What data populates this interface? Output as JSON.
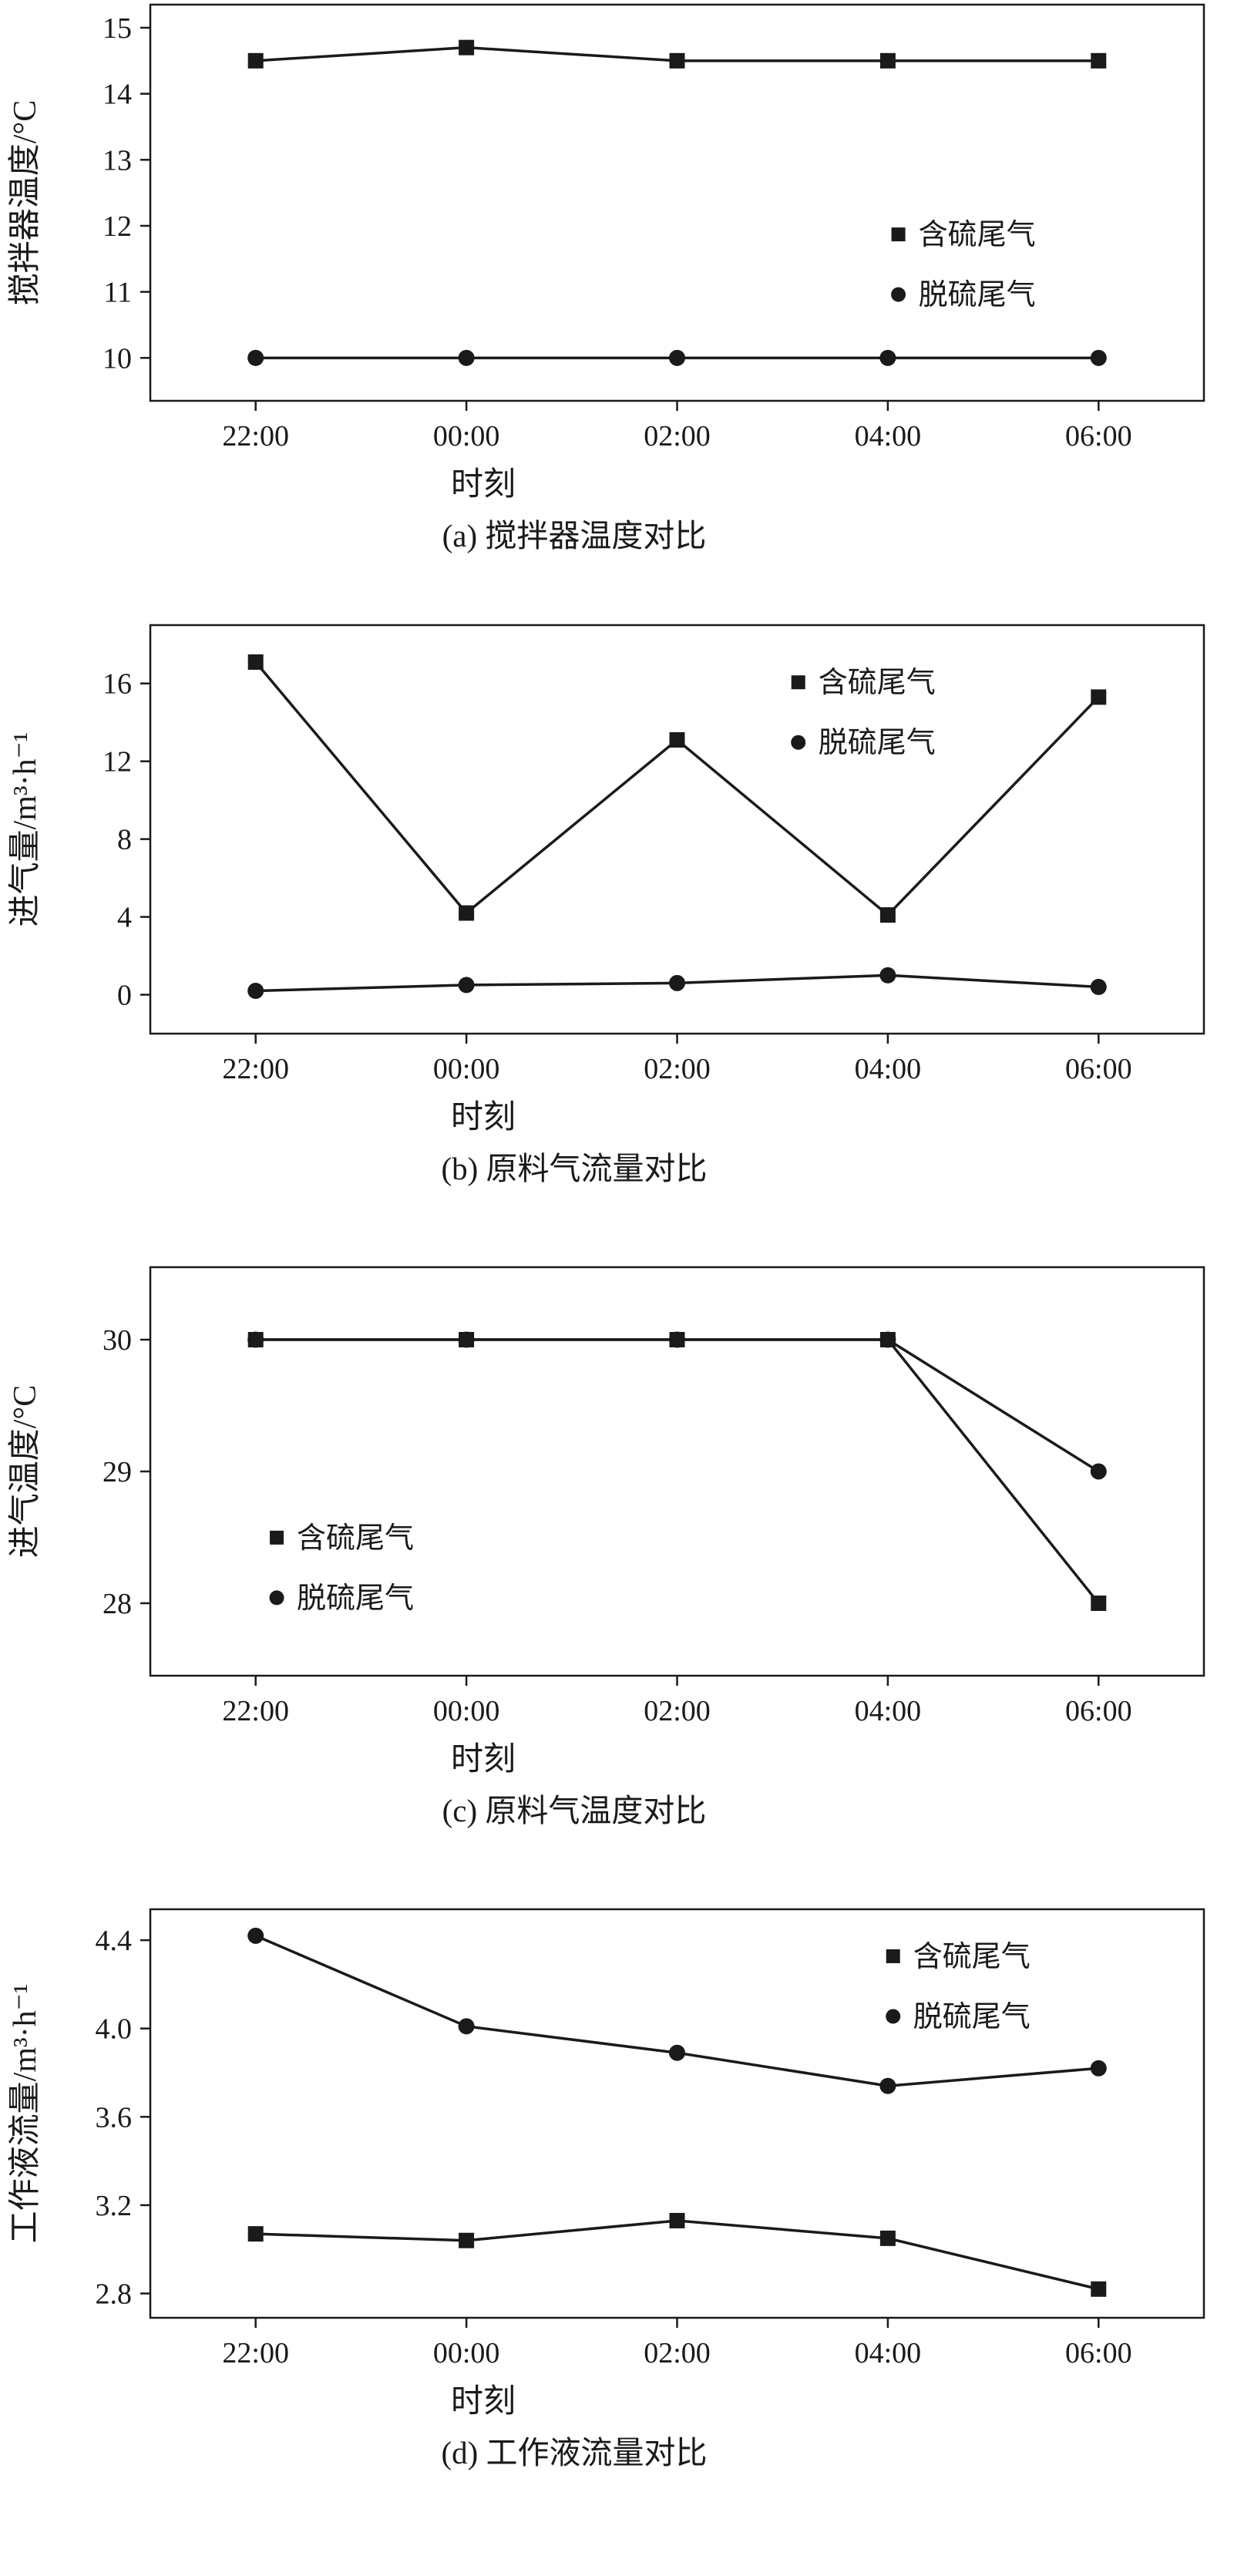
{
  "figure": {
    "background": "#ffffff",
    "line_color": "#1a1a1a"
  },
  "chart_data": [
    {
      "type": "line",
      "caption": "(a) 搅拌器温度对比",
      "xlabel": "时刻",
      "ylabel": "搅拌器温度/°C",
      "x_ticklabels": [
        "22:00",
        "00:00",
        "02:00",
        "04:00",
        "06:00"
      ],
      "ylim": [
        9.35,
        15.35
      ],
      "yticks": [
        10,
        11,
        12,
        13,
        14,
        15
      ],
      "ytick_labels": [
        "10",
        "11",
        "12",
        "13",
        "14",
        "15"
      ],
      "grid": false,
      "legend": {
        "fx": 0.71,
        "fy": 0.58
      },
      "series": [
        {
          "name": "含硫尾气",
          "marker": "square",
          "values": [
            14.5,
            14.7,
            14.5,
            14.5,
            14.5
          ]
        },
        {
          "name": "脱硫尾气",
          "marker": "circle",
          "values": [
            10.0,
            10.0,
            10.0,
            10.0,
            10.0
          ]
        }
      ]
    },
    {
      "type": "line",
      "caption": "(b) 原料气流量对比",
      "xlabel": "时刻",
      "ylabel": "进气量/m³·h⁻¹",
      "x_ticklabels": [
        "22:00",
        "00:00",
        "02:00",
        "04:00",
        "06:00"
      ],
      "ylim": [
        -2,
        19
      ],
      "yticks": [
        0,
        4,
        8,
        12,
        16
      ],
      "ytick_labels": [
        "0",
        "4",
        "8",
        "12",
        "16"
      ],
      "grid": false,
      "legend": {
        "fx": 0.615,
        "fy": 0.14
      },
      "series": [
        {
          "name": "含硫尾气",
          "marker": "square",
          "values": [
            17.1,
            4.2,
            13.1,
            4.1,
            15.3
          ]
        },
        {
          "name": "脱硫尾气",
          "marker": "circle",
          "values": [
            0.2,
            0.5,
            0.6,
            1.0,
            0.4
          ]
        }
      ]
    },
    {
      "type": "line",
      "caption": "(c) 原料气温度对比",
      "xlabel": "时刻",
      "ylabel": "进气温度/°C",
      "x_ticklabels": [
        "22:00",
        "00:00",
        "02:00",
        "04:00",
        "06:00"
      ],
      "ylim": [
        27.45,
        30.55
      ],
      "yticks": [
        28,
        29,
        30
      ],
      "ytick_labels": [
        "28",
        "29",
        "30"
      ],
      "grid": false,
      "legend": {
        "fx": 0.12,
        "fy": 0.662
      },
      "series": [
        {
          "name": "含硫尾气",
          "marker": "square",
          "values": [
            30,
            30,
            30,
            30,
            28
          ]
        },
        {
          "name": "脱硫尾气",
          "marker": "circle",
          "values": [
            30,
            30,
            30,
            30,
            29
          ]
        }
      ]
    },
    {
      "type": "line",
      "caption": "(d) 工作液流量对比",
      "xlabel": "时刻",
      "ylabel": "工作液流量/m³·h⁻¹",
      "x_ticklabels": [
        "22:00",
        "00:00",
        "02:00",
        "04:00",
        "06:00"
      ],
      "ylim": [
        2.69,
        4.54
      ],
      "yticks": [
        2.8,
        3.2,
        3.6,
        4.0,
        4.4
      ],
      "ytick_labels": [
        "2.8",
        "3.2",
        "3.6",
        "4.0",
        "4.4"
      ],
      "grid": false,
      "legend": {
        "fx": 0.705,
        "fy": 0.115
      },
      "series": [
        {
          "name": "含硫尾气",
          "marker": "square",
          "values": [
            3.07,
            3.04,
            3.13,
            3.05,
            2.82
          ]
        },
        {
          "name": "脱硫尾气",
          "marker": "circle",
          "values": [
            4.42,
            4.01,
            3.89,
            3.74,
            3.82
          ]
        }
      ]
    }
  ]
}
